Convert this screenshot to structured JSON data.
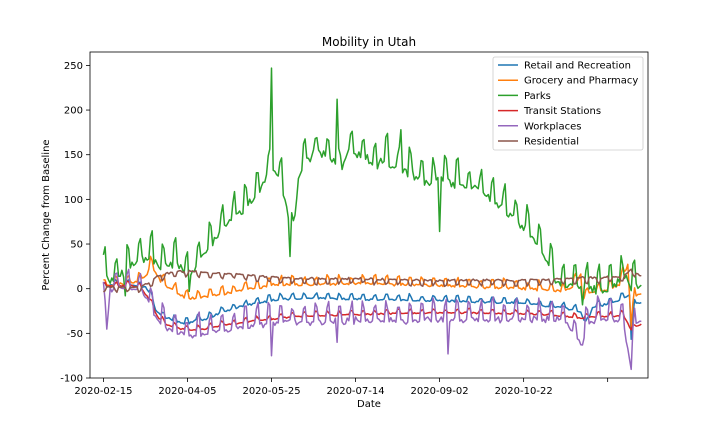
{
  "chart_data": {
    "type": "line",
    "title": "Mobility in Utah",
    "xlabel": "Date",
    "ylabel": "Percent Change from Baseline",
    "ylim": [
      -100,
      265
    ],
    "yticks": [
      -100,
      -50,
      0,
      50,
      100,
      150,
      200,
      250
    ],
    "xlim": [
      "2020-02-07",
      "2021-01-04"
    ],
    "xticks": [
      "2020-02-15",
      "2020-04-05",
      "2020-05-25",
      "2020-07-14",
      "2020-09-02",
      "2020-10-22",
      ""
    ],
    "grid": false,
    "legend": "top-right",
    "series": [
      {
        "name": "Retail and Recreation",
        "color": "#1f77b4",
        "points": [
          [
            "2020-02-15",
            2
          ],
          [
            "2020-02-20",
            6
          ],
          [
            "2020-02-25",
            4
          ],
          [
            "2020-03-01",
            6
          ],
          [
            "2020-03-06",
            5
          ],
          [
            "2020-03-11",
            3
          ],
          [
            "2020-03-14",
            -5
          ],
          [
            "2020-03-17",
            -22
          ],
          [
            "2020-03-21",
            -30
          ],
          [
            "2020-03-26",
            -33
          ],
          [
            "2020-03-31",
            -36
          ],
          [
            "2020-04-05",
            -38
          ],
          [
            "2020-04-10",
            -34
          ],
          [
            "2020-04-15",
            -33
          ],
          [
            "2020-04-20",
            -30
          ],
          [
            "2020-04-25",
            -25
          ],
          [
            "2020-05-01",
            -22
          ],
          [
            "2020-05-08",
            -18
          ],
          [
            "2020-05-16",
            -15
          ],
          [
            "2020-05-25",
            -12
          ],
          [
            "2020-06-05",
            -10
          ],
          [
            "2020-06-20",
            -9
          ],
          [
            "2020-07-05",
            -10
          ],
          [
            "2020-07-20",
            -11
          ],
          [
            "2020-08-05",
            -11
          ],
          [
            "2020-08-20",
            -12
          ],
          [
            "2020-09-02",
            -12
          ],
          [
            "2020-09-20",
            -13
          ],
          [
            "2020-10-05",
            -14
          ],
          [
            "2020-10-22",
            -15
          ],
          [
            "2020-11-05",
            -18
          ],
          [
            "2020-11-15",
            -20
          ],
          [
            "2020-11-25",
            -25
          ],
          [
            "2020-11-28",
            -40
          ],
          [
            "2020-12-02",
            -20
          ],
          [
            "2020-12-10",
            -16
          ],
          [
            "2020-12-18",
            -12
          ],
          [
            "2020-12-24",
            -6
          ],
          [
            "2020-12-25",
            -55
          ],
          [
            "2020-12-27",
            -15
          ],
          [
            "2020-12-31",
            -14
          ]
        ],
        "weekly_amplitude": 4
      },
      {
        "name": "Grocery and Pharmacy",
        "color": "#ff7f0e",
        "points": [
          [
            "2020-02-15",
            4
          ],
          [
            "2020-02-22",
            6
          ],
          [
            "2020-03-01",
            8
          ],
          [
            "2020-03-08",
            12
          ],
          [
            "2020-03-12",
            18
          ],
          [
            "2020-03-14",
            32
          ],
          [
            "2020-03-16",
            22
          ],
          [
            "2020-03-20",
            10
          ],
          [
            "2020-03-26",
            2
          ],
          [
            "2020-04-01",
            -5
          ],
          [
            "2020-04-05",
            -10
          ],
          [
            "2020-04-12",
            -8
          ],
          [
            "2020-04-20",
            -6
          ],
          [
            "2020-04-25",
            -4
          ],
          [
            "2020-05-01",
            -2
          ],
          [
            "2020-05-10",
            2
          ],
          [
            "2020-05-20",
            4
          ],
          [
            "2020-05-25",
            6
          ],
          [
            "2020-06-10",
            6
          ],
          [
            "2020-06-25",
            7
          ],
          [
            "2020-07-14",
            8
          ],
          [
            "2020-08-05",
            7
          ],
          [
            "2020-08-25",
            6
          ],
          [
            "2020-09-02",
            5
          ],
          [
            "2020-09-25",
            4
          ],
          [
            "2020-10-10",
            3
          ],
          [
            "2020-10-22",
            2
          ],
          [
            "2020-11-05",
            1
          ],
          [
            "2020-11-15",
            0
          ],
          [
            "2020-11-20",
            4
          ],
          [
            "2020-11-25",
            18
          ],
          [
            "2020-11-26",
            -10
          ],
          [
            "2020-12-01",
            -2
          ],
          [
            "2020-12-10",
            0
          ],
          [
            "2020-12-18",
            6
          ],
          [
            "2020-12-23",
            30
          ],
          [
            "2020-12-25",
            -40
          ],
          [
            "2020-12-27",
            -5
          ],
          [
            "2020-12-31",
            -4
          ]
        ],
        "weekly_amplitude": 6
      },
      {
        "name": "Parks",
        "color": "#2ca02c",
        "points": [
          [
            "2020-02-15",
            25
          ],
          [
            "2020-02-20",
            15
          ],
          [
            "2020-02-25",
            20
          ],
          [
            "2020-03-01",
            30
          ],
          [
            "2020-03-06",
            35
          ],
          [
            "2020-03-11",
            40
          ],
          [
            "2020-03-16",
            38
          ],
          [
            "2020-03-21",
            30
          ],
          [
            "2020-03-26",
            35
          ],
          [
            "2020-04-01",
            30
          ],
          [
            "2020-04-05",
            20
          ],
          [
            "2020-04-10",
            30
          ],
          [
            "2020-04-15",
            45
          ],
          [
            "2020-04-20",
            60
          ],
          [
            "2020-04-25",
            70
          ],
          [
            "2020-05-01",
            85
          ],
          [
            "2020-05-08",
            95
          ],
          [
            "2020-05-16",
            110
          ],
          [
            "2020-05-21",
            130
          ],
          [
            "2020-05-25",
            140
          ],
          [
            "2020-05-30",
            130
          ],
          [
            "2020-06-03",
            100
          ],
          [
            "2020-06-07",
            60
          ],
          [
            "2020-06-10",
            130
          ],
          [
            "2020-06-15",
            150
          ],
          [
            "2020-06-20",
            160
          ],
          [
            "2020-06-25",
            155
          ],
          [
            "2020-07-01",
            150
          ],
          [
            "2020-07-05",
            140
          ],
          [
            "2020-07-10",
            160
          ],
          [
            "2020-07-14",
            155
          ],
          [
            "2020-07-20",
            150
          ],
          [
            "2020-07-25",
            145
          ],
          [
            "2020-08-01",
            148
          ],
          [
            "2020-08-08",
            140
          ],
          [
            "2020-08-15",
            135
          ],
          [
            "2020-08-20",
            130
          ],
          [
            "2020-08-25",
            125
          ],
          [
            "2020-09-02",
            130
          ],
          [
            "2020-09-08",
            125
          ],
          [
            "2020-09-15",
            120
          ],
          [
            "2020-09-22",
            120
          ],
          [
            "2020-09-30",
            110
          ],
          [
            "2020-10-07",
            100
          ],
          [
            "2020-10-14",
            90
          ],
          [
            "2020-10-22",
            75
          ],
          [
            "2020-10-29",
            60
          ],
          [
            "2020-11-03",
            45
          ],
          [
            "2020-11-06",
            30
          ],
          [
            "2020-11-10",
            15
          ],
          [
            "2020-11-15",
            10
          ],
          [
            "2020-11-20",
            8
          ],
          [
            "2020-11-25",
            6
          ],
          [
            "2020-12-01",
            5
          ],
          [
            "2020-12-08",
            4
          ],
          [
            "2020-12-14",
            8
          ],
          [
            "2020-12-18",
            15
          ],
          [
            "2020-12-22",
            20
          ],
          [
            "2020-12-25",
            5
          ],
          [
            "2020-12-28",
            12
          ],
          [
            "2020-12-31",
            8
          ]
        ],
        "weekly_amplitude": 18,
        "spikes": [
          [
            "2020-05-25",
            247
          ],
          [
            "2020-06-05",
            36
          ],
          [
            "2020-07-03",
            212
          ],
          [
            "2020-07-21",
            150
          ],
          [
            "2020-08-10",
            178
          ],
          [
            "2020-09-02",
            64
          ],
          [
            "2020-02-28",
            -8
          ],
          [
            "2020-04-06",
            -3
          ],
          [
            "2020-11-26",
            -18
          ]
        ]
      },
      {
        "name": "Transit Stations",
        "color": "#d62728",
        "points": [
          [
            "2020-02-15",
            3
          ],
          [
            "2020-02-22",
            4
          ],
          [
            "2020-03-01",
            5
          ],
          [
            "2020-03-08",
            2
          ],
          [
            "2020-03-13",
            -10
          ],
          [
            "2020-03-18",
            -30
          ],
          [
            "2020-03-24",
            -40
          ],
          [
            "2020-04-01",
            -44
          ],
          [
            "2020-04-05",
            -46
          ],
          [
            "2020-04-15",
            -44
          ],
          [
            "2020-04-25",
            -40
          ],
          [
            "2020-05-05",
            -38
          ],
          [
            "2020-05-15",
            -35
          ],
          [
            "2020-05-25",
            -33
          ],
          [
            "2020-06-10",
            -30
          ],
          [
            "2020-06-25",
            -29
          ],
          [
            "2020-07-14",
            -28
          ],
          [
            "2020-08-05",
            -27
          ],
          [
            "2020-08-25",
            -26
          ],
          [
            "2020-09-02",
            -26
          ],
          [
            "2020-09-20",
            -26
          ],
          [
            "2020-10-05",
            -27
          ],
          [
            "2020-10-22",
            -27
          ],
          [
            "2020-11-05",
            -28
          ],
          [
            "2020-11-15",
            -30
          ],
          [
            "2020-11-25",
            -32
          ],
          [
            "2020-12-05",
            -30
          ],
          [
            "2020-12-15",
            -30
          ],
          [
            "2020-12-20",
            -28
          ],
          [
            "2020-12-25",
            -45
          ],
          [
            "2020-12-31",
            -38
          ]
        ],
        "weekly_amplitude": 3
      },
      {
        "name": "Workplaces",
        "color": "#9467bd",
        "points": [
          [
            "2020-02-15",
            -5
          ],
          [
            "2020-02-17",
            -38
          ],
          [
            "2020-02-19",
            5
          ],
          [
            "2020-02-25",
            6
          ],
          [
            "2020-03-01",
            6
          ],
          [
            "2020-03-08",
            3
          ],
          [
            "2020-03-13",
            -10
          ],
          [
            "2020-03-18",
            -30
          ],
          [
            "2020-03-24",
            -40
          ],
          [
            "2020-04-01",
            -45
          ],
          [
            "2020-04-05",
            -47
          ],
          [
            "2020-04-15",
            -46
          ],
          [
            "2020-04-25",
            -42
          ],
          [
            "2020-05-05",
            -40
          ],
          [
            "2020-05-15",
            -36
          ],
          [
            "2020-05-25",
            -34
          ],
          [
            "2020-06-10",
            -33
          ],
          [
            "2020-06-25",
            -32
          ],
          [
            "2020-07-14",
            -31
          ],
          [
            "2020-08-05",
            -31
          ],
          [
            "2020-08-25",
            -31
          ],
          [
            "2020-09-02",
            -31
          ],
          [
            "2020-09-20",
            -30
          ],
          [
            "2020-10-05",
            -30
          ],
          [
            "2020-10-22",
            -30
          ],
          [
            "2020-11-05",
            -30
          ],
          [
            "2020-11-15",
            -30
          ],
          [
            "2020-11-26",
            -60
          ],
          [
            "2020-11-28",
            -35
          ],
          [
            "2020-12-05",
            -30
          ],
          [
            "2020-12-15",
            -29
          ],
          [
            "2020-12-20",
            -30
          ],
          [
            "2020-12-25",
            -85
          ],
          [
            "2020-12-27",
            -35
          ],
          [
            "2020-12-31",
            -30
          ]
        ],
        "weekly_amplitude": 14,
        "spikes": [
          [
            "2020-05-25",
            -75
          ],
          [
            "2020-07-03",
            -60
          ],
          [
            "2020-09-07",
            -73
          ]
        ]
      },
      {
        "name": "Residential",
        "color": "#8c564b",
        "points": [
          [
            "2020-02-15",
            0
          ],
          [
            "2020-02-22",
            1
          ],
          [
            "2020-03-01",
            0
          ],
          [
            "2020-03-08",
            1
          ],
          [
            "2020-03-13",
            5
          ],
          [
            "2020-03-18",
            12
          ],
          [
            "2020-03-24",
            16
          ],
          [
            "2020-04-01",
            18
          ],
          [
            "2020-04-05",
            18
          ],
          [
            "2020-04-15",
            17
          ],
          [
            "2020-04-25",
            16
          ],
          [
            "2020-05-05",
            15
          ],
          [
            "2020-05-15",
            13
          ],
          [
            "2020-05-25",
            12
          ],
          [
            "2020-06-10",
            10
          ],
          [
            "2020-06-25",
            10
          ],
          [
            "2020-07-14",
            10
          ],
          [
            "2020-08-05",
            9
          ],
          [
            "2020-08-25",
            8
          ],
          [
            "2020-09-02",
            8
          ],
          [
            "2020-09-20",
            8
          ],
          [
            "2020-10-05",
            8
          ],
          [
            "2020-10-22",
            8
          ],
          [
            "2020-11-05",
            9
          ],
          [
            "2020-11-15",
            10
          ],
          [
            "2020-11-25",
            11
          ],
          [
            "2020-12-05",
            11
          ],
          [
            "2020-12-15",
            12
          ],
          [
            "2020-12-20",
            12
          ],
          [
            "2020-12-25",
            20
          ],
          [
            "2020-12-31",
            12
          ]
        ],
        "weekly_amplitude": 4
      }
    ]
  }
}
